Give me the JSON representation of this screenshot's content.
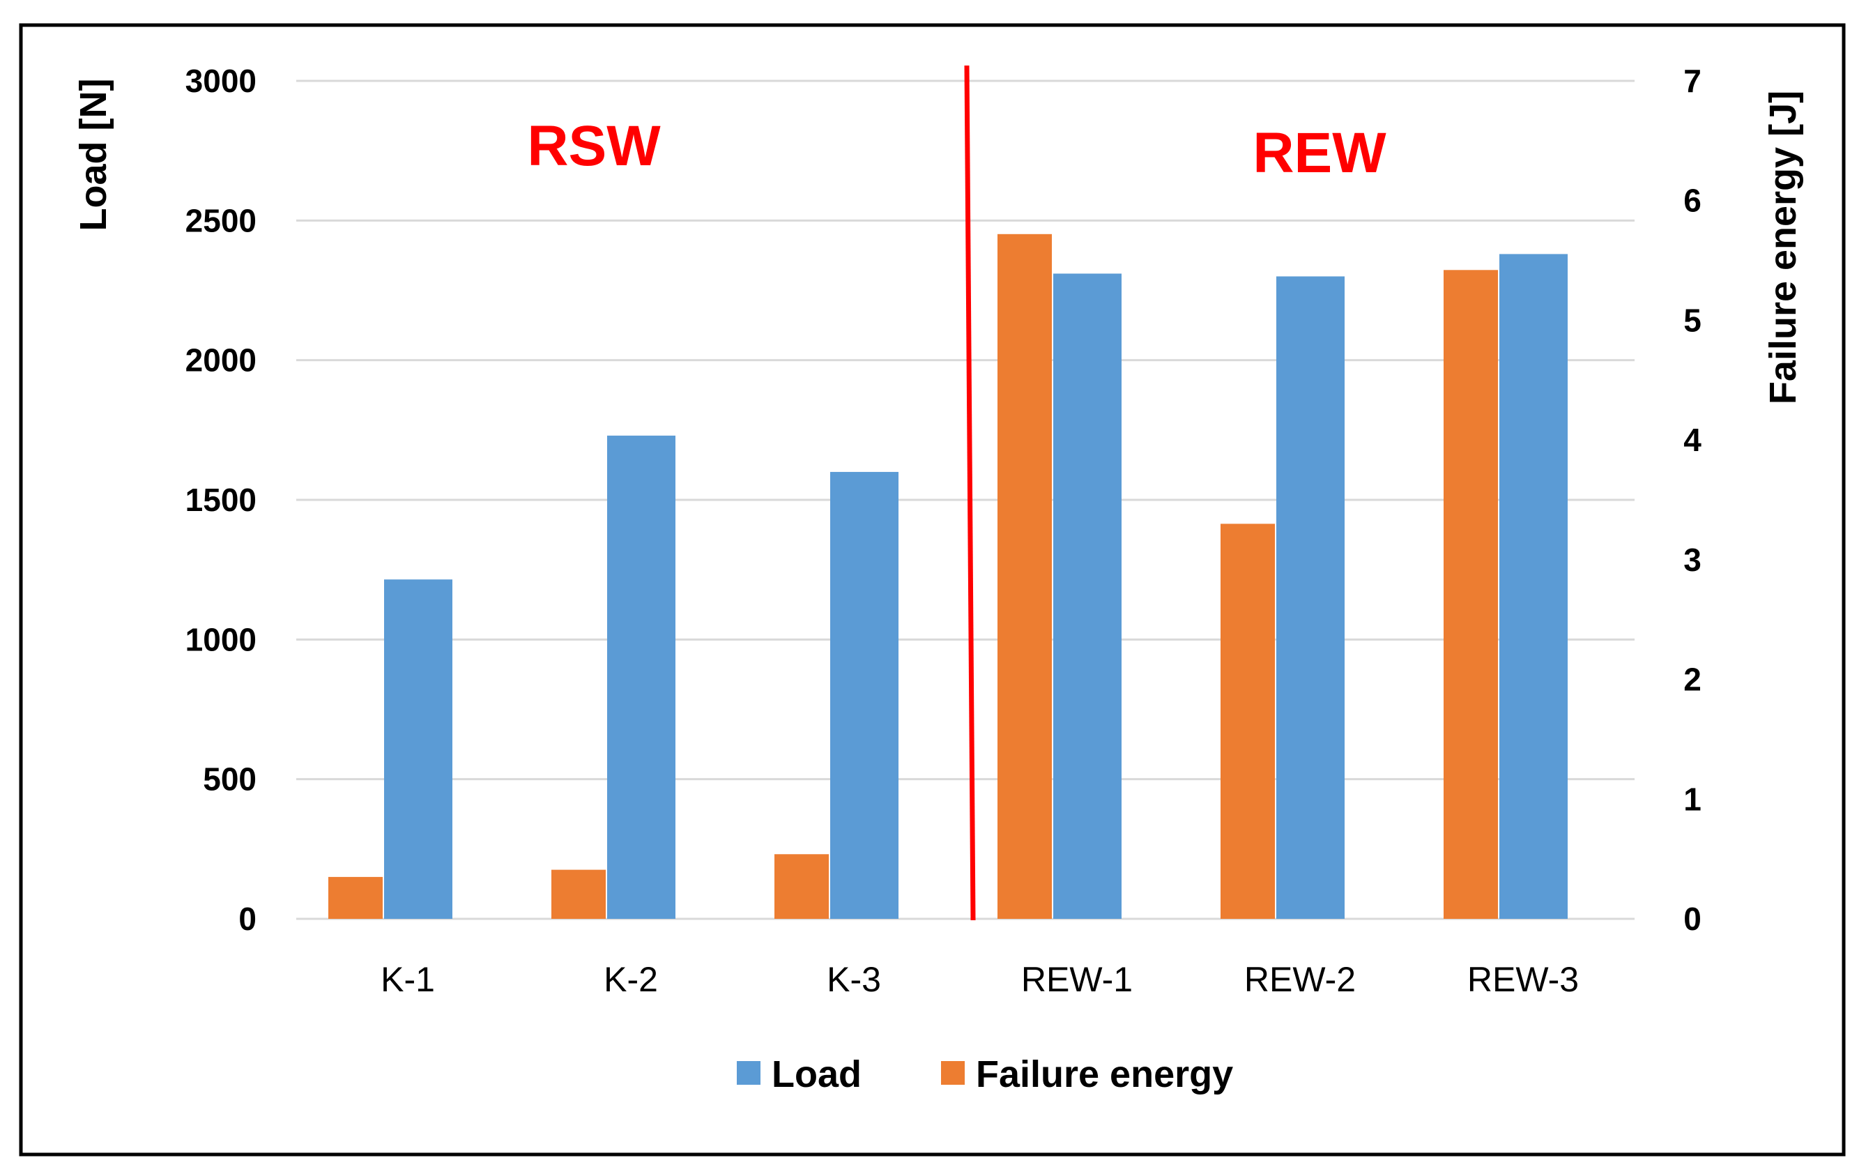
{
  "chart_data": {
    "type": "bar",
    "categories": [
      "K-1",
      "K-2",
      "K-3",
      "REW-1",
      "REW-2",
      "REW-3"
    ],
    "series": [
      {
        "name": "Load",
        "axis": "left",
        "color": "#5b9bd5",
        "values": [
          1215,
          1730,
          1600,
          2310,
          2300,
          2380
        ]
      },
      {
        "name": "Failure energy",
        "axis": "right",
        "color": "#ed7d31",
        "values": [
          0.35,
          0.41,
          0.54,
          5.72,
          3.3,
          5.42
        ]
      }
    ],
    "ylabel": "Load [N]",
    "y2label": "Failure energy [J]",
    "ylim": [
      0,
      3000
    ],
    "y2lim": [
      0,
      7
    ],
    "yticks": [
      "0",
      "500",
      "1000",
      "1500",
      "2000",
      "2500",
      "3000"
    ],
    "y2ticks": [
      "0",
      "1",
      "2",
      "3",
      "4",
      "5",
      "6",
      "7"
    ],
    "group_labels": [
      "RSW",
      "REW"
    ],
    "divider_color": "#ff0000",
    "grid": true,
    "legend_position": "bottom"
  }
}
